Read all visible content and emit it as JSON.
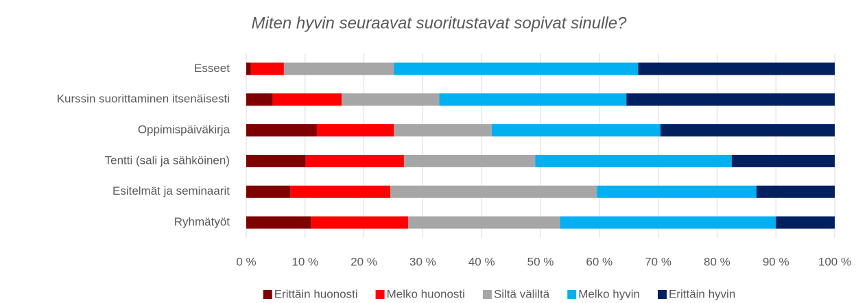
{
  "chart_data": {
    "type": "stacked-barh",
    "title": "Miten hyvin seuraavat suoritustavat sopivat sinulle?",
    "categories": [
      "Esseet",
      "Kurssin suorittaminen itsenäisesti",
      "Oppimispäiväkirja",
      "Tentti (sali ja sähköinen)",
      "Esitelmät ja seminaarit",
      "Ryhmätyöt"
    ],
    "series": [
      {
        "name": "Erittäin huonosti",
        "color": "#7f0000",
        "values": [
          0.8,
          4.5,
          12.0,
          10.1,
          7.5,
          11.0
        ]
      },
      {
        "name": "Melko huonosti",
        "color": "#ff0000",
        "values": [
          5.6,
          11.7,
          13.1,
          16.7,
          17.0,
          16.5
        ]
      },
      {
        "name": "Siltä väliltä",
        "color": "#a6a6a6",
        "values": [
          18.7,
          16.6,
          16.6,
          22.3,
          35.1,
          25.8
        ]
      },
      {
        "name": "Melko hyvin",
        "color": "#00b0f0",
        "values": [
          41.5,
          31.8,
          28.7,
          33.4,
          27.1,
          36.7
        ]
      },
      {
        "name": "Erittäin hyvin",
        "color": "#002060",
        "values": [
          33.4,
          35.4,
          29.6,
          17.5,
          13.3,
          10.0
        ]
      }
    ],
    "xlim": [
      0,
      100
    ],
    "xticks": [
      {
        "value": 0,
        "label": "0 %"
      },
      {
        "value": 10,
        "label": "10 %"
      },
      {
        "value": 20,
        "label": "20 %"
      },
      {
        "value": 30,
        "label": "30 %"
      },
      {
        "value": 40,
        "label": "40 %"
      },
      {
        "value": 50,
        "label": "50 %"
      },
      {
        "value": 60,
        "label": "60 %"
      },
      {
        "value": 70,
        "label": "70 %"
      },
      {
        "value": 80,
        "label": "80 %"
      },
      {
        "value": 90,
        "label": "90 %"
      },
      {
        "value": 100,
        "label": "100 %"
      }
    ],
    "grid": true,
    "legend": "bottom"
  }
}
